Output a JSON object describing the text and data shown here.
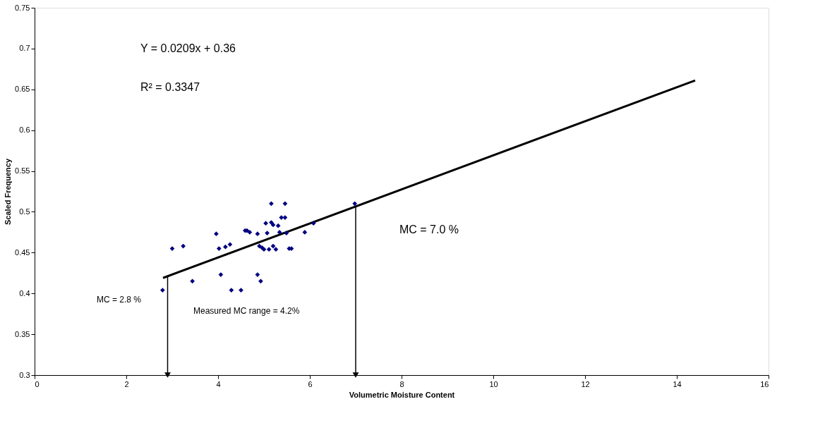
{
  "chart_data": {
    "type": "scatter",
    "xlabel": "Volumetric Moisture Content",
    "ylabel": "Scaled Frequency",
    "xlim": [
      0,
      16
    ],
    "xticks": [
      0,
      2,
      4,
      6,
      8,
      10,
      12,
      14,
      16
    ],
    "ylim": [
      0.3,
      0.75
    ],
    "yticks": [
      0.3,
      0.35,
      0.4,
      0.45,
      0.5,
      0.55,
      0.6,
      0.65,
      0.7,
      0.75
    ],
    "grid": false,
    "marker": "diamond",
    "series": [
      {
        "color": "#000080",
        "x": [
          2.79,
          3.0,
          3.24,
          3.44,
          3.96,
          4.02,
          4.06,
          4.16,
          4.26,
          4.29,
          4.5,
          4.59,
          4.63,
          4.69,
          4.86,
          4.86,
          4.93,
          4.9,
          4.96,
          5.0,
          5.04,
          5.07,
          5.11,
          5.16,
          5.16,
          5.2,
          5.2,
          5.26,
          5.31,
          5.34,
          5.38,
          5.46,
          5.46,
          5.49,
          5.55,
          5.6,
          5.89,
          6.08,
          6.98
        ],
        "values": [
          0.404,
          0.455,
          0.458,
          0.415,
          0.473,
          0.455,
          0.423,
          0.457,
          0.46,
          0.404,
          0.404,
          0.477,
          0.477,
          0.475,
          0.473,
          0.423,
          0.415,
          0.458,
          0.456,
          0.454,
          0.486,
          0.474,
          0.454,
          0.51,
          0.487,
          0.484,
          0.458,
          0.454,
          0.483,
          0.475,
          0.493,
          0.51,
          0.493,
          0.474,
          0.455,
          0.455,
          0.475,
          0.486,
          0.51
        ]
      },
      {
        "type": "line",
        "marker": "none",
        "color": "#000000",
        "x": [
          2.8,
          14.4
        ],
        "values": [
          0.419,
          0.661
        ]
      }
    ],
    "ref_lines": [
      {
        "axis": "x",
        "value": 2.9,
        "color": "#000000"
      },
      {
        "axis": "x",
        "value": 7.0,
        "color": "#000000"
      }
    ],
    "annotations": [
      "Y = 0.0209x + 0.36",
      "R² = 0.3347",
      "MC = 2.8 %",
      "Measured MC range = 4.2%",
      "MC = 7.0 %"
    ]
  }
}
